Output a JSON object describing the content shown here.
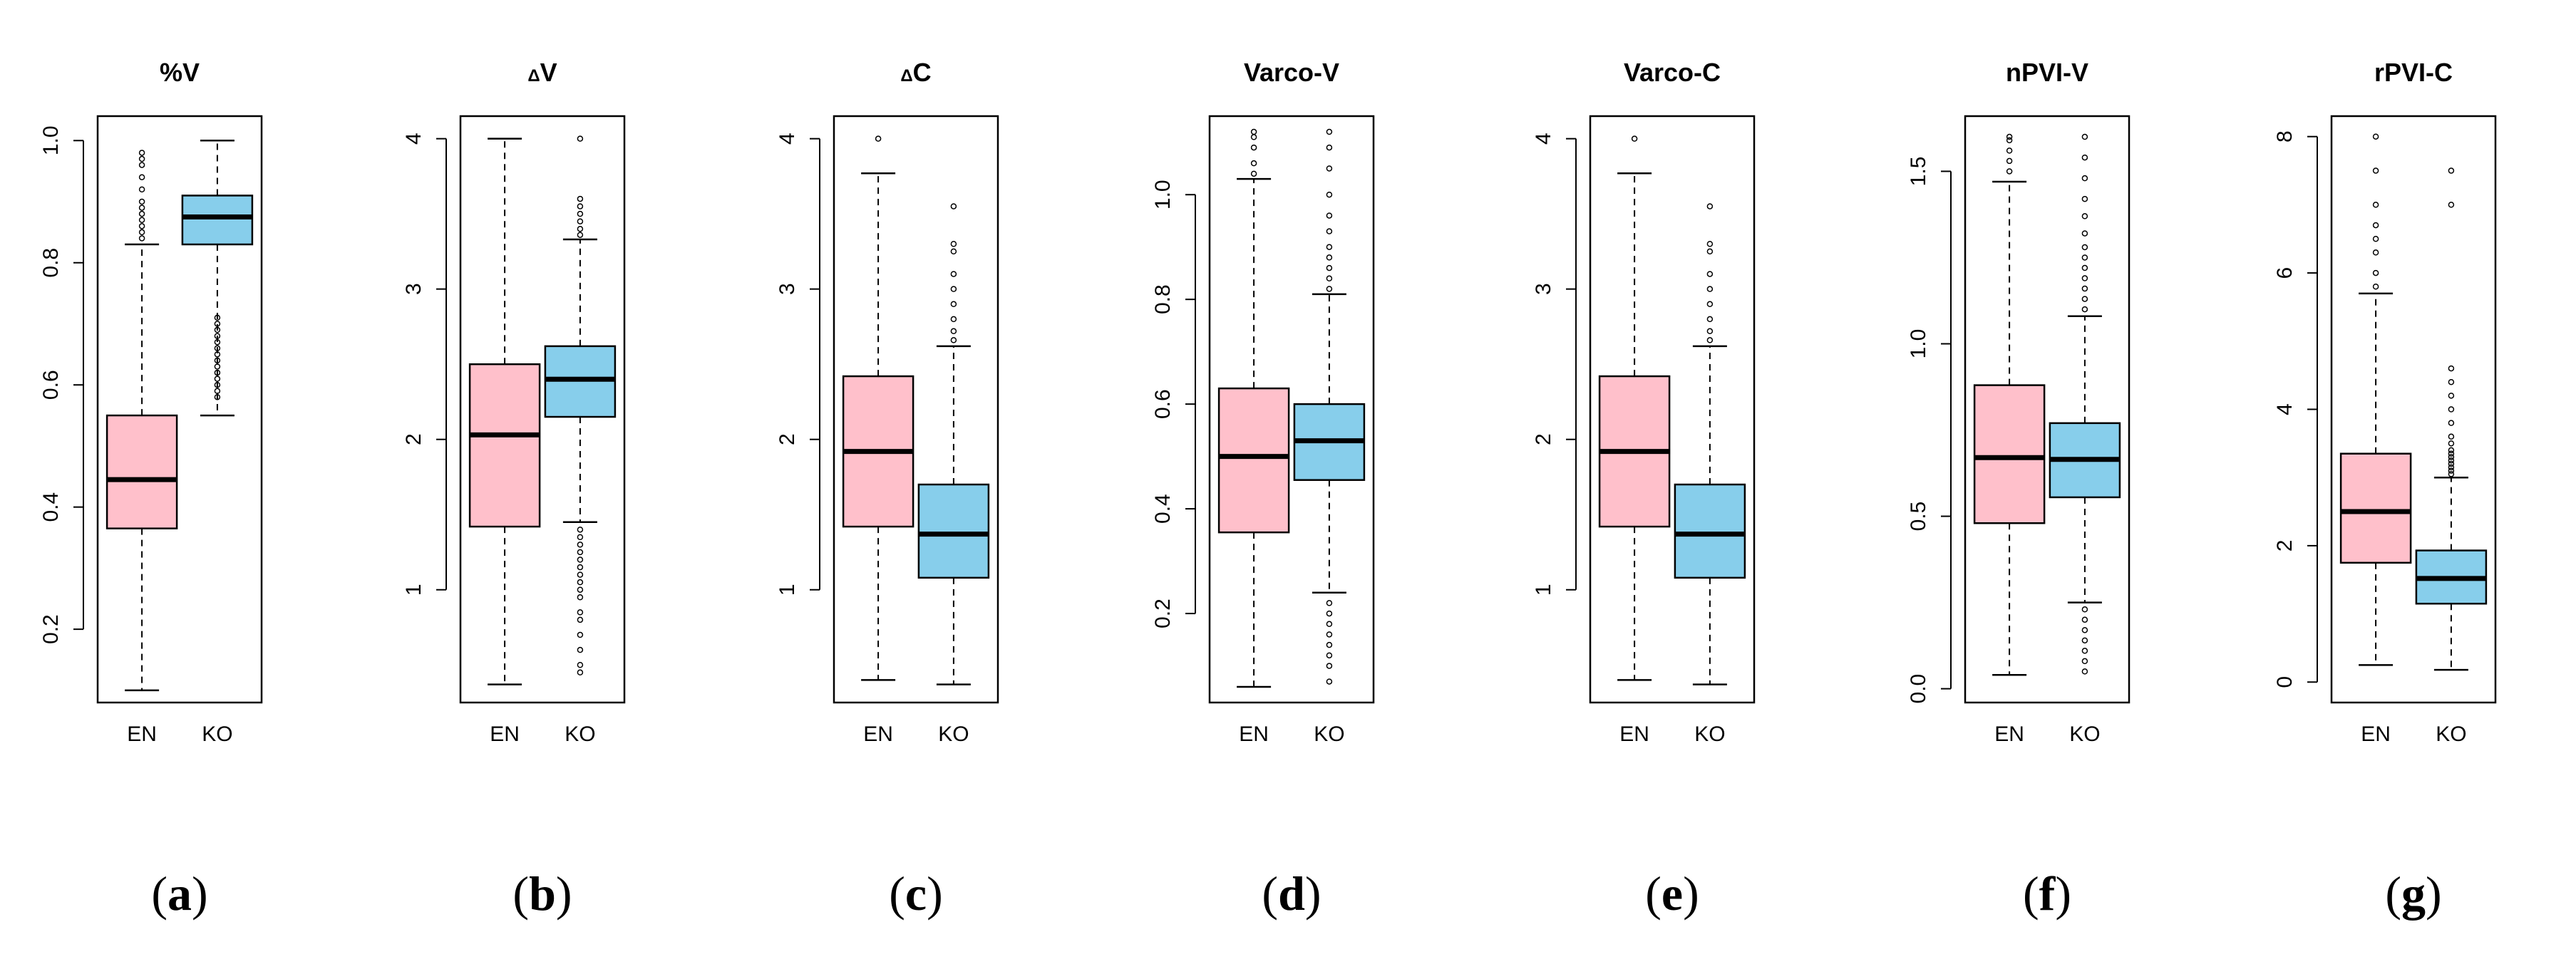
{
  "chart_data": [
    {
      "type": "boxplot",
      "panel": "(a)",
      "panel_letter": "a",
      "title": "%V",
      "ylim": [
        0.08,
        1.04
      ],
      "yticks": [
        0.2,
        0.4,
        0.6,
        0.8,
        1.0
      ],
      "ytick_labels": [
        "0.2",
        "0.4",
        "0.6",
        "0.8",
        "1.0"
      ],
      "categories": [
        "EN",
        "KO"
      ],
      "colors": [
        "#ffc0cb",
        "#87ceeb"
      ],
      "boxes": [
        {
          "category": "EN",
          "lower_whisker": 0.1,
          "q1": 0.365,
          "median": 0.445,
          "q3": 0.55,
          "upper_whisker": 0.83,
          "outliers": [
            0.84,
            0.85,
            0.86,
            0.87,
            0.88,
            0.89,
            0.9,
            0.92,
            0.94,
            0.96,
            0.97,
            0.98
          ]
        },
        {
          "category": "KO",
          "lower_whisker": 0.55,
          "q1": 0.83,
          "median": 0.875,
          "q3": 0.91,
          "upper_whisker": 1.0,
          "outliers": [
            0.58,
            0.59,
            0.6,
            0.61,
            0.62,
            0.63,
            0.64,
            0.65,
            0.66,
            0.67,
            0.68,
            0.69,
            0.7,
            0.71
          ]
        }
      ]
    },
    {
      "type": "boxplot",
      "panel": "(b)",
      "panel_letter": "b",
      "title": "ΔV",
      "title_parts": [
        "Δ",
        "V"
      ],
      "ylim": [
        0.25,
        4.15
      ],
      "yticks": [
        1,
        2,
        3,
        4
      ],
      "ytick_labels": [
        "1",
        "2",
        "3",
        "4"
      ],
      "categories": [
        "EN",
        "KO"
      ],
      "colors": [
        "#ffc0cb",
        "#87ceeb"
      ],
      "boxes": [
        {
          "category": "EN",
          "lower_whisker": 0.37,
          "q1": 1.42,
          "median": 2.03,
          "q3": 2.5,
          "upper_whisker": 4.0,
          "outliers": []
        },
        {
          "category": "KO",
          "lower_whisker": 1.45,
          "q1": 2.15,
          "median": 2.4,
          "q3": 2.62,
          "upper_whisker": 3.33,
          "outliers": [
            0.45,
            0.5,
            0.6,
            0.7,
            0.8,
            0.85,
            0.95,
            1.0,
            1.05,
            1.1,
            1.15,
            1.2,
            1.25,
            1.3,
            1.35,
            1.4,
            3.36,
            3.4,
            3.45,
            3.5,
            3.55,
            3.6,
            4.0
          ]
        }
      ]
    },
    {
      "type": "boxplot",
      "panel": "(c)",
      "panel_letter": "c",
      "title": "ΔC",
      "title_parts": [
        "Δ",
        "C"
      ],
      "ylim": [
        0.25,
        4.15
      ],
      "yticks": [
        1,
        2,
        3,
        4
      ],
      "ytick_labels": [
        "1",
        "2",
        "3",
        "4"
      ],
      "categories": [
        "EN",
        "KO"
      ],
      "colors": [
        "#ffc0cb",
        "#87ceeb"
      ],
      "boxes": [
        {
          "category": "EN",
          "lower_whisker": 0.4,
          "q1": 1.42,
          "median": 1.92,
          "q3": 2.42,
          "upper_whisker": 3.77,
          "outliers": [
            4.0
          ]
        },
        {
          "category": "KO",
          "lower_whisker": 0.37,
          "q1": 1.08,
          "median": 1.37,
          "q3": 1.7,
          "upper_whisker": 2.62,
          "outliers": [
            2.66,
            2.72,
            2.8,
            2.9,
            3.0,
            3.1,
            3.25,
            3.3,
            3.55
          ]
        }
      ]
    },
    {
      "type": "boxplot",
      "panel": "(d)",
      "panel_letter": "d",
      "title": "Varco-V",
      "ylim": [
        0.03,
        1.15
      ],
      "yticks": [
        0.2,
        0.4,
        0.6,
        0.8,
        1.0
      ],
      "ytick_labels": [
        "0.2",
        "0.4",
        "0.6",
        "0.8",
        "1.0"
      ],
      "categories": [
        "EN",
        "KO"
      ],
      "colors": [
        "#ffc0cb",
        "#87ceeb"
      ],
      "boxes": [
        {
          "category": "EN",
          "lower_whisker": 0.06,
          "q1": 0.355,
          "median": 0.5,
          "q3": 0.63,
          "upper_whisker": 1.03,
          "outliers": [
            1.04,
            1.06,
            1.09,
            1.11,
            1.12
          ]
        },
        {
          "category": "KO",
          "lower_whisker": 0.24,
          "q1": 0.455,
          "median": 0.53,
          "q3": 0.6,
          "upper_whisker": 0.81,
          "outliers": [
            0.07,
            0.1,
            0.12,
            0.14,
            0.16,
            0.18,
            0.2,
            0.22,
            0.82,
            0.84,
            0.86,
            0.88,
            0.9,
            0.93,
            0.96,
            1.0,
            1.05,
            1.09,
            1.12
          ]
        }
      ]
    },
    {
      "type": "boxplot",
      "panel": "(e)",
      "panel_letter": "e",
      "title": "Varco-C",
      "ylim": [
        0.25,
        4.15
      ],
      "yticks": [
        1,
        2,
        3,
        4
      ],
      "ytick_labels": [
        "1",
        "2",
        "3",
        "4"
      ],
      "categories": [
        "EN",
        "KO"
      ],
      "colors": [
        "#ffc0cb",
        "#87ceeb"
      ],
      "boxes": [
        {
          "category": "EN",
          "lower_whisker": 0.4,
          "q1": 1.42,
          "median": 1.92,
          "q3": 2.42,
          "upper_whisker": 3.77,
          "outliers": [
            4.0
          ]
        },
        {
          "category": "KO",
          "lower_whisker": 0.37,
          "q1": 1.08,
          "median": 1.37,
          "q3": 1.7,
          "upper_whisker": 2.62,
          "outliers": [
            2.66,
            2.72,
            2.8,
            2.9,
            3.0,
            3.1,
            3.25,
            3.3,
            3.55
          ]
        }
      ]
    },
    {
      "type": "boxplot",
      "panel": "(f)",
      "panel_letter": "f",
      "title": "nPVI-V",
      "ylim": [
        -0.04,
        1.66
      ],
      "yticks": [
        0.0,
        0.5,
        1.0,
        1.5
      ],
      "ytick_labels": [
        "0.0",
        "0.5",
        "1.0",
        "1.5"
      ],
      "categories": [
        "EN",
        "KO"
      ],
      "colors": [
        "#ffc0cb",
        "#87ceeb"
      ],
      "boxes": [
        {
          "category": "EN",
          "lower_whisker": 0.04,
          "q1": 0.48,
          "median": 0.67,
          "q3": 0.88,
          "upper_whisker": 1.47,
          "outliers": [
            1.5,
            1.53,
            1.56,
            1.59,
            1.6
          ]
        },
        {
          "category": "KO",
          "lower_whisker": 0.25,
          "q1": 0.555,
          "median": 0.665,
          "q3": 0.77,
          "upper_whisker": 1.08,
          "outliers": [
            0.05,
            0.08,
            0.11,
            0.14,
            0.17,
            0.2,
            0.23,
            1.1,
            1.13,
            1.16,
            1.19,
            1.22,
            1.25,
            1.28,
            1.32,
            1.37,
            1.42,
            1.48,
            1.54,
            1.6
          ]
        }
      ]
    },
    {
      "type": "boxplot",
      "panel": "(g)",
      "panel_letter": "g",
      "title": "rPVI-C",
      "ylim": [
        -0.3,
        8.3
      ],
      "yticks": [
        0,
        2,
        4,
        6,
        8
      ],
      "ytick_labels": [
        "0",
        "2",
        "4",
        "6",
        "8"
      ],
      "categories": [
        "EN",
        "KO"
      ],
      "colors": [
        "#ffc0cb",
        "#87ceeb"
      ],
      "boxes": [
        {
          "category": "EN",
          "lower_whisker": 0.25,
          "q1": 1.75,
          "median": 2.5,
          "q3": 3.35,
          "upper_whisker": 5.7,
          "outliers": [
            5.8,
            6.0,
            6.3,
            6.5,
            6.7,
            7.0,
            7.5,
            8.0
          ]
        },
        {
          "category": "KO",
          "lower_whisker": 0.18,
          "q1": 1.15,
          "median": 1.52,
          "q3": 1.93,
          "upper_whisker": 3.0,
          "outliers": [
            3.05,
            3.1,
            3.15,
            3.2,
            3.25,
            3.3,
            3.35,
            3.4,
            3.5,
            3.6,
            3.8,
            4.0,
            4.2,
            4.4,
            4.6,
            7.0,
            7.5
          ]
        }
      ]
    }
  ]
}
